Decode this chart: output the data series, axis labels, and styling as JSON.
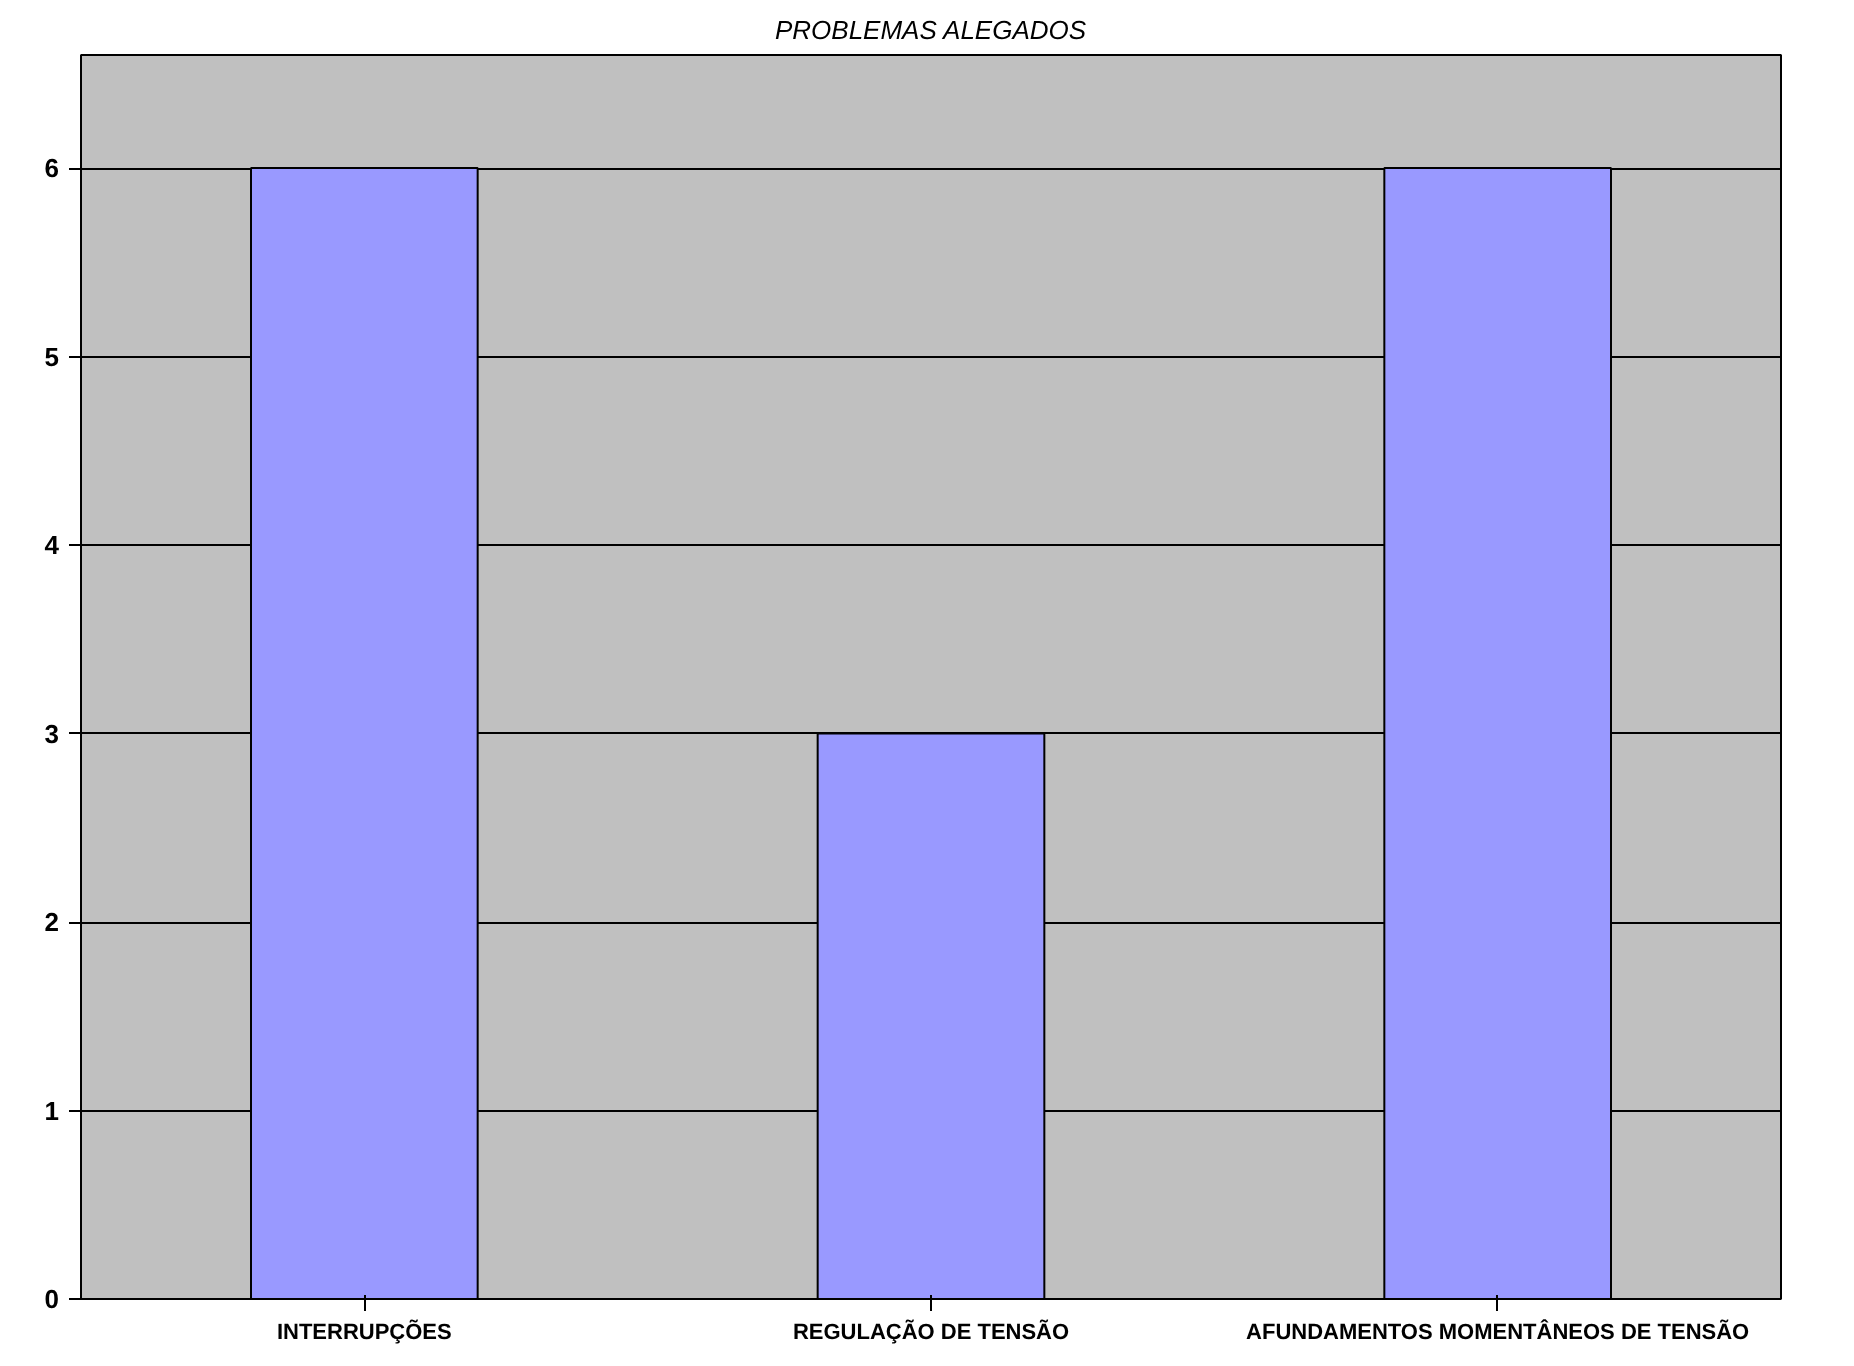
{
  "chart_data": {
    "type": "bar",
    "title": "PROBLEMAS ALEGADOS",
    "categories": [
      "INTERRUPÇÕES",
      "REGULAÇÃO DE TENSÃO",
      "AFUNDAMENTOS MOMENTÂNEOS DE TENSÃO"
    ],
    "values": [
      6,
      3,
      6
    ],
    "color": "#9999ff",
    "ylim": [
      0,
      6.6
    ],
    "yticks": [
      0,
      1,
      2,
      3,
      4,
      5,
      6
    ],
    "grid": "y"
  }
}
